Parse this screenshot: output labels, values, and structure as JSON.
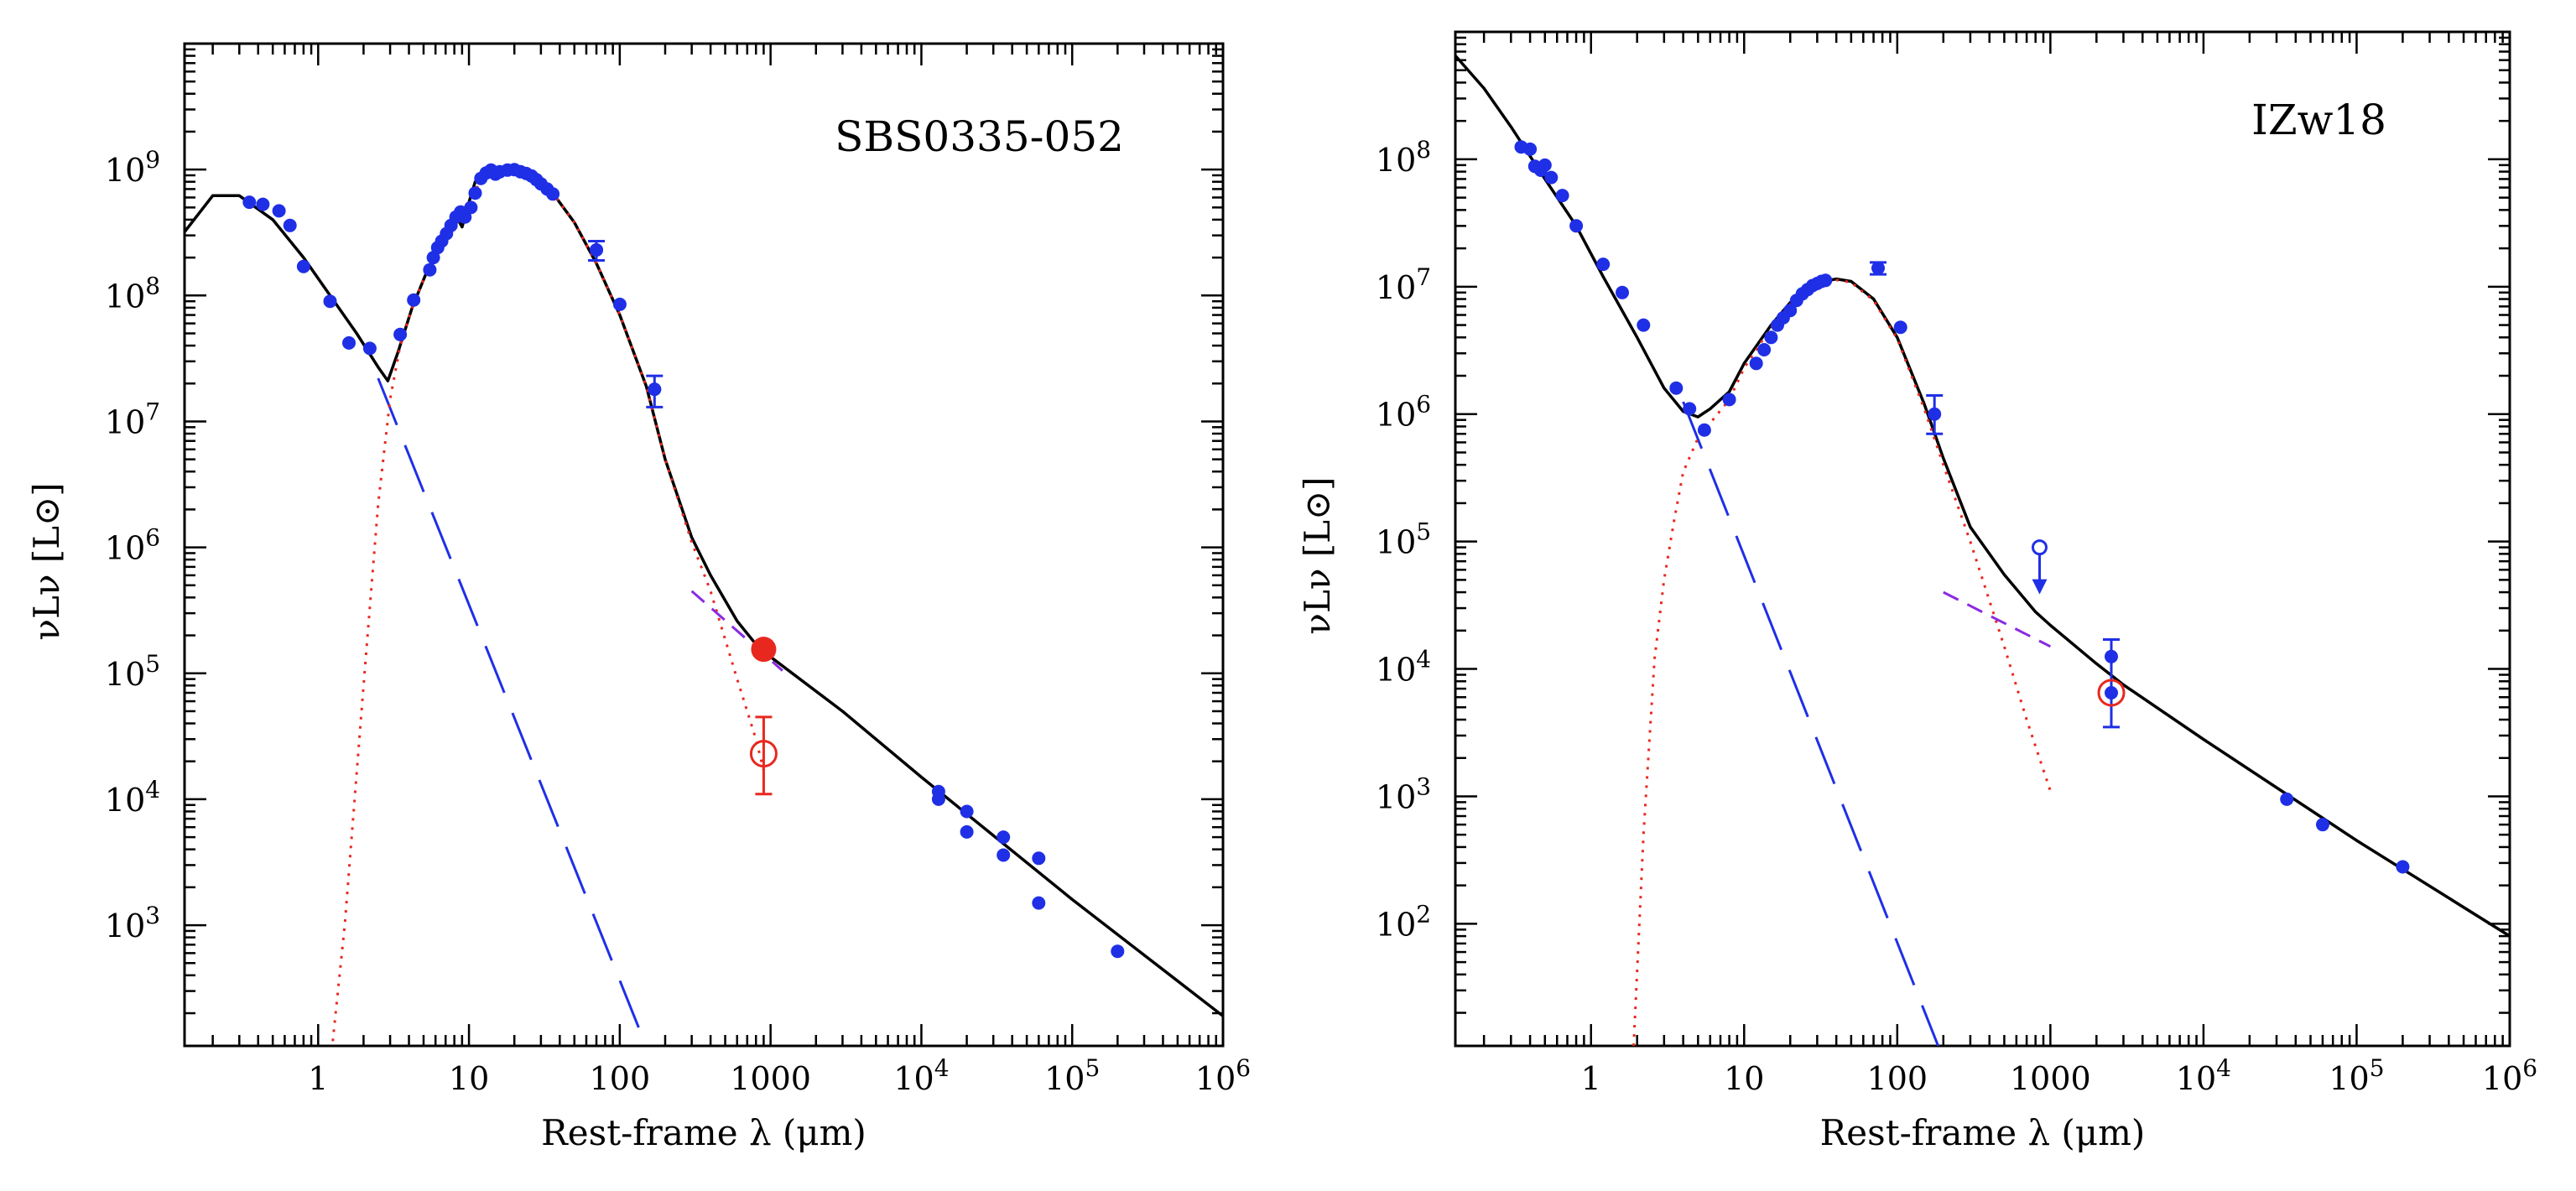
{
  "chart_data": [
    {
      "type": "scatter",
      "title": "SBS0335-052",
      "xlabel": "Rest-frame λ (μm)",
      "ylabel": "νLν [L⊙]",
      "xscale": "log",
      "yscale": "log",
      "xlim": [
        0.13,
        1000000
      ],
      "ylim": [
        110,
        10000000000
      ],
      "xticks": [
        {
          "value": 1,
          "mant": "1",
          "exp": ""
        },
        {
          "value": 10,
          "mant": "10",
          "exp": ""
        },
        {
          "value": 100,
          "mant": "100",
          "exp": ""
        },
        {
          "value": 1000,
          "mant": "1000",
          "exp": ""
        },
        {
          "value": 10000,
          "mant": "10",
          "exp": "4"
        },
        {
          "value": 100000,
          "mant": "10",
          "exp": "5"
        },
        {
          "value": 1000000,
          "mant": "10",
          "exp": "6"
        }
      ],
      "yticks": [
        {
          "value": 1000,
          "mant": "10",
          "exp": "3"
        },
        {
          "value": 10000,
          "mant": "10",
          "exp": "4"
        },
        {
          "value": 100000,
          "mant": "10",
          "exp": "5"
        },
        {
          "value": 1000000,
          "mant": "10",
          "exp": "6"
        },
        {
          "value": 10000000,
          "mant": "10",
          "exp": "7"
        },
        {
          "value": 100000000,
          "mant": "10",
          "exp": "8"
        },
        {
          "value": 1000000000,
          "mant": "10",
          "exp": "9"
        }
      ],
      "series": [
        {
          "name": "total-model",
          "style": "solid",
          "color": "#000000",
          "x": [
            0.13,
            0.2,
            0.3,
            0.5,
            0.8,
            1.2,
            1.8,
            2.5,
            2.9,
            3.4,
            4.2,
            5.2,
            6.5,
            8,
            9,
            10,
            11,
            13,
            16,
            20,
            25,
            35,
            50,
            70,
            100,
            150,
            200,
            300,
            400,
            600,
            800,
            1000,
            3000,
            10000,
            100000,
            1000000
          ],
          "y": [
            320000000.0,
            620000000.0,
            620000000.0,
            400000000.0,
            200000000.0,
            100000000.0,
            50000000.0,
            27000000.0,
            21000000.0,
            36000000.0,
            80000000.0,
            150000000.0,
            260000000.0,
            450000000.0,
            350000000.0,
            550000000.0,
            800000000.0,
            980000000.0,
            980000000.0,
            1000000000.0,
            950000000.0,
            680000000.0,
            380000000.0,
            180000000.0,
            70000000.0,
            19000000.0,
            5000000.0,
            1200000.0,
            600000.0,
            260000.0,
            170000.0,
            135000.0,
            50000.0,
            15000.0,
            1600.0,
            190.0
          ]
        },
        {
          "name": "stellar-component",
          "style": "long-dash",
          "color": "#1f2fe6",
          "x": [
            2.5,
            145
          ],
          "y": [
            22000000.0,
            120
          ]
        },
        {
          "name": "dust-component",
          "style": "dotted",
          "color": "#e8281e",
          "x": [
            1.25,
            1.5,
            2,
            2.5,
            3,
            3.5,
            4.2,
            5.2,
            6.5,
            8,
            10,
            13,
            16,
            20,
            25,
            35,
            50,
            70,
            100,
            150,
            200,
            300,
            400,
            600,
            800,
            900
          ],
          "y": [
            120,
            1000.0,
            80000.0,
            2200000.0,
            15000000.0,
            40000000.0,
            80000000.0,
            150000000.0,
            260000000.0,
            450000000.0,
            550000000.0,
            980000000.0,
            980000000.0,
            1000000000.0,
            950000000.0,
            680000000.0,
            380000000.0,
            180000000.0,
            70000000.0,
            19000000.0,
            5000000.0,
            1100000.0,
            450000.0,
            90000.0,
            30000.0,
            17000.0
          ]
        },
        {
          "name": "radio-component",
          "style": "short-dash",
          "color": "#8a2be2",
          "x": [
            300,
            1200
          ],
          "y": [
            450000.0,
            105000.0
          ]
        }
      ],
      "points": {
        "color": "#1f2fe6",
        "x": [
          0.35,
          0.43,
          0.55,
          0.65,
          0.8,
          1.2,
          1.6,
          2.2,
          3.5,
          4.3,
          5.5,
          5.8,
          6.2,
          6.6,
          7.1,
          7.6,
          8.2,
          8.8,
          9.4,
          10.3,
          11,
          12,
          13,
          14,
          15,
          16,
          18,
          20,
          22,
          24,
          26,
          28,
          30,
          33,
          36,
          70,
          100,
          170,
          13000,
          13000,
          20000,
          20000,
          35000,
          35000,
          60000,
          60000,
          200000
        ],
        "y": [
          550000000.0,
          530000000.0,
          470000000.0,
          360000000.0,
          170000000.0,
          90000000.0,
          42000000.0,
          38000000.0,
          49000000.0,
          92000000.0,
          160000000.0,
          200000000.0,
          240000000.0,
          270000000.0,
          310000000.0,
          360000000.0,
          420000000.0,
          460000000.0,
          420000000.0,
          500000000.0,
          650000000.0,
          850000000.0,
          940000000.0,
          990000000.0,
          920000000.0,
          960000000.0,
          990000000.0,
          1000000000.0,
          960000000.0,
          930000000.0,
          890000000.0,
          830000000.0,
          770000000.0,
          700000000.0,
          640000000.0,
          230000000.0,
          85000000.0,
          18000000.0,
          11500.0,
          10000.0,
          8000.0,
          5500.0,
          5000.0,
          3600.0,
          3400.0,
          1500.0,
          620.0
        ]
      },
      "error_bars": [
        {
          "x": 70,
          "y": 230000000.0,
          "low": 190000000.0,
          "high": 270000000.0
        },
        {
          "x": 170,
          "y": 18000000.0,
          "low": 13000000.0,
          "high": 23000000.0
        }
      ],
      "special_points": [
        {
          "label": "filled-red-point",
          "x": 900,
          "y": 155000.0,
          "filled": true,
          "color": "#e8281e"
        },
        {
          "label": "open-red-point",
          "x": 900,
          "y": 23000.0,
          "filled": false,
          "color": "#e8281e",
          "low": 11000.0,
          "high": 45000.0
        }
      ],
      "upper_limits": []
    },
    {
      "type": "scatter",
      "title": "IZw18",
      "xlabel": "Rest-frame λ (μm)",
      "ylabel": "νLν [L⊙]",
      "xscale": "log",
      "yscale": "log",
      "xlim": [
        0.13,
        1000000
      ],
      "ylim": [
        11,
        1000000000
      ],
      "xticks": [
        {
          "value": 1,
          "mant": "1",
          "exp": ""
        },
        {
          "value": 10,
          "mant": "10",
          "exp": ""
        },
        {
          "value": 100,
          "mant": "100",
          "exp": ""
        },
        {
          "value": 1000,
          "mant": "1000",
          "exp": ""
        },
        {
          "value": 10000,
          "mant": "10",
          "exp": "4"
        },
        {
          "value": 100000,
          "mant": "10",
          "exp": "5"
        },
        {
          "value": 1000000,
          "mant": "10",
          "exp": "6"
        }
      ],
      "yticks": [
        {
          "value": 100,
          "mant": "10",
          "exp": "2"
        },
        {
          "value": 1000,
          "mant": "10",
          "exp": "3"
        },
        {
          "value": 10000,
          "mant": "10",
          "exp": "4"
        },
        {
          "value": 100000,
          "mant": "10",
          "exp": "5"
        },
        {
          "value": 1000000,
          "mant": "10",
          "exp": "6"
        },
        {
          "value": 10000000,
          "mant": "10",
          "exp": "7"
        },
        {
          "value": 100000000,
          "mant": "10",
          "exp": "8"
        }
      ],
      "series": [
        {
          "name": "total-model",
          "style": "solid",
          "color": "#000000",
          "x": [
            0.13,
            0.2,
            0.3,
            0.5,
            0.8,
            1.2,
            2,
            3,
            4,
            5,
            6,
            8,
            10,
            15,
            20,
            30,
            40,
            50,
            70,
            100,
            150,
            200,
            300,
            500,
            800,
            1000,
            2000,
            3000,
            10000,
            100000,
            1000000
          ],
          "y": [
            650000000.0,
            360000000.0,
            180000000.0,
            70000000.0,
            30000000.0,
            12000000.0,
            4000000.0,
            1600000.0,
            1050000.0,
            950000.0,
            1100000.0,
            1500000.0,
            2500000.0,
            5000000.0,
            7500000.0,
            10800000.0,
            11500000.0,
            11000000.0,
            8000000.0,
            4000000.0,
            1200000.0,
            450000.0,
            130000.0,
            55000.0,
            28000.0,
            22000.0,
            11000.0,
            7500.0,
            2800.0,
            450.0,
            80
          ]
        },
        {
          "name": "stellar-component",
          "style": "long-dash",
          "color": "#1f2fe6",
          "x": [
            4,
            185
          ],
          "y": [
            1250000.0,
            11
          ]
        },
        {
          "name": "dust-component",
          "style": "dotted",
          "color": "#e8281e",
          "x": [
            1.9,
            2.2,
            2.6,
            3,
            3.5,
            4,
            5,
            6,
            8,
            10,
            15,
            20,
            30,
            40,
            50,
            70,
            100,
            150,
            200,
            300,
            500,
            700,
            1000
          ],
          "y": [
            11,
            500,
            12000.0,
            50000.0,
            150000.0,
            350000.0,
            650000.0,
            850000.0,
            1300000.0,
            2300000.0,
            4800000.0,
            7300000.0,
            10600000.0,
            11300000.0,
            10800000.0,
            7800000.0,
            3900000.0,
            1100000.0,
            400000.0,
            100000.0,
            15000.0,
            4000.0,
            1100.0
          ]
        },
        {
          "name": "radio-component",
          "style": "short-dash",
          "color": "#8a2be2",
          "x": [
            200,
            1000
          ],
          "y": [
            40000.0,
            15000.0
          ]
        }
      ],
      "points": {
        "color": "#1f2fe6",
        "x": [
          0.35,
          0.4,
          0.43,
          0.47,
          0.5,
          0.55,
          0.65,
          0.8,
          1.2,
          1.6,
          2.2,
          3.6,
          4.4,
          5.5,
          8,
          12,
          13.5,
          15,
          16.5,
          18,
          20,
          22,
          24,
          26,
          28,
          30,
          32,
          34,
          105,
          2500
        ],
        "y": [
          125000000.0,
          120000000.0,
          88000000.0,
          82000000.0,
          90000000.0,
          72000000.0,
          52000000.0,
          30000000.0,
          15000000.0,
          9000000.0,
          5000000.0,
          1600000.0,
          1100000.0,
          750000.0,
          1300000.0,
          2500000.0,
          3200000.0,
          4000000.0,
          5000000.0,
          5700000.0,
          6500000.0,
          7800000.0,
          8800000.0,
          9500000.0,
          10200000.0,
          10600000.0,
          11000000.0,
          11200000.0,
          4800000.0,
          12500.0
        ]
      },
      "error_bars": [
        {
          "x": 75,
          "y": 14000000.0,
          "low": 12500000.0,
          "high": 15500000.0
        },
        {
          "x": 175,
          "y": 1000000.0,
          "low": 700000.0,
          "high": 1400000.0
        },
        {
          "x": 2500,
          "y": 6500.0,
          "low": 3500.0,
          "high": 17000.0
        }
      ],
      "special_points": [
        {
          "label": "open-red-point",
          "x": 2500,
          "y": 6500.0,
          "filled": false,
          "color": "#e8281e"
        },
        {
          "label": "blue-point",
          "x": 35000,
          "y": 950,
          "filled": true,
          "color": "#1f2fe6"
        },
        {
          "label": "blue-point",
          "x": 60000,
          "y": 600,
          "filled": true,
          "color": "#1f2fe6"
        },
        {
          "label": "blue-point",
          "x": 200000,
          "y": 280,
          "filled": true,
          "color": "#1f2fe6"
        }
      ],
      "upper_limits": [
        {
          "x": 850,
          "y": 90000.0,
          "color": "#1f2fe6"
        }
      ]
    }
  ]
}
